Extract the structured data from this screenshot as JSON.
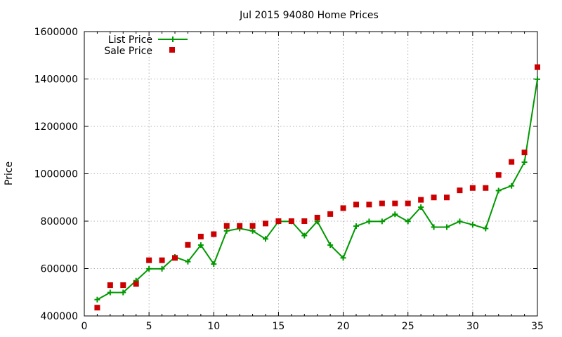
{
  "chart_data": {
    "type": "line",
    "title": "Jul 2015 94080 Home Prices",
    "ylabel": "Price",
    "xlabel": "",
    "xlim": [
      0,
      35
    ],
    "ylim": [
      400000,
      1600000
    ],
    "x_ticks": [
      0,
      5,
      10,
      15,
      20,
      25,
      30,
      35
    ],
    "y_ticks": [
      400000,
      600000,
      800000,
      1000000,
      1200000,
      1400000,
      1600000
    ],
    "grid": true,
    "legend_position": "top-left",
    "x": [
      1,
      2,
      3,
      4,
      5,
      6,
      7,
      8,
      9,
      10,
      11,
      12,
      13,
      14,
      15,
      16,
      17,
      18,
      19,
      20,
      21,
      22,
      23,
      24,
      25,
      26,
      27,
      28,
      29,
      30,
      31,
      32,
      33,
      34,
      35
    ],
    "series": [
      {
        "name": "List Price",
        "style": "line-with-plus-markers",
        "color": "#009900",
        "values": [
          469000,
          499000,
          499000,
          549000,
          599000,
          599000,
          649000,
          629000,
          699000,
          619000,
          759000,
          769000,
          759000,
          725000,
          799000,
          799000,
          739000,
          799000,
          699000,
          645000,
          779000,
          799000,
          799000,
          829000,
          799000,
          859000,
          775000,
          775000,
          799000,
          785000,
          769000,
          929000,
          949000,
          1049000,
          1399000
        ]
      },
      {
        "name": "Sale Price",
        "style": "square-markers",
        "color": "#cc0000",
        "values": [
          435000,
          530000,
          530000,
          535000,
          635000,
          635000,
          645000,
          700000,
          735000,
          745000,
          780000,
          780000,
          780000,
          790000,
          800000,
          800000,
          800000,
          815000,
          830000,
          855000,
          870000,
          870000,
          875000,
          875000,
          875000,
          890000,
          900000,
          900000,
          930000,
          940000,
          940000,
          995000,
          1050000,
          1090000,
          1450000
        ]
      }
    ]
  }
}
